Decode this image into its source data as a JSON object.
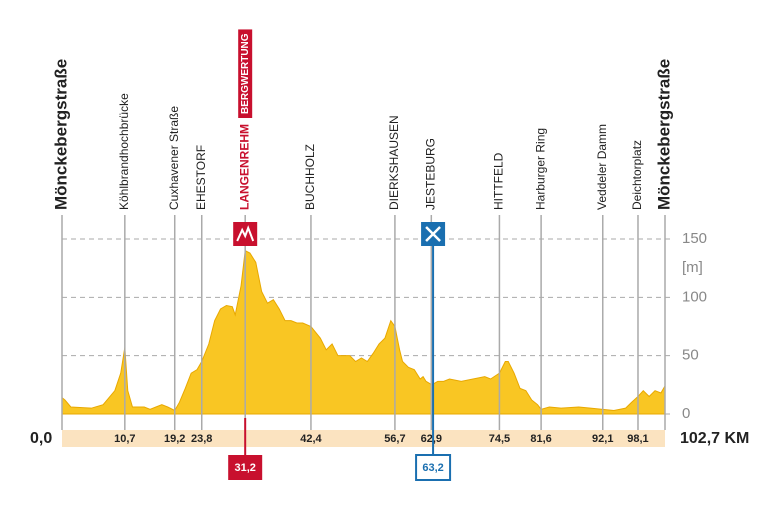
{
  "chart_data": {
    "type": "area",
    "xlim": [
      0,
      102.7
    ],
    "ylim": [
      0,
      150
    ],
    "yticks": [
      0,
      50,
      100,
      150
    ],
    "y_unit": "[m]",
    "grid": true,
    "x": [
      0,
      0.5,
      1.5,
      5,
      7,
      9,
      10,
      10.7,
      11.2,
      12,
      14,
      15,
      16,
      17,
      18,
      19.2,
      20,
      21,
      22,
      23,
      23.8,
      25,
      26,
      27,
      28,
      29,
      29.5,
      30.5,
      31.2,
      32,
      33,
      34,
      35,
      36,
      37,
      38,
      39,
      40,
      41,
      42.4,
      44,
      45,
      46,
      47,
      48,
      49,
      50,
      51,
      52,
      53,
      54,
      55,
      56,
      56.7,
      57.5,
      58,
      59,
      60,
      61,
      61.5,
      62,
      63,
      64,
      65,
      66,
      68,
      70,
      72,
      73,
      74.5,
      75.5,
      76,
      77,
      78,
      79,
      80,
      81,
      81.6,
      83,
      85,
      88,
      90,
      92.1,
      94,
      96,
      97,
      98.1,
      99,
      100,
      101,
      102,
      102.7
    ],
    "series": [
      {
        "color": "#f9c623",
        "values": [
          14,
          12,
          6,
          5,
          8,
          20,
          35,
          57,
          20,
          6,
          6,
          4,
          6,
          8,
          6,
          3,
          10,
          22,
          35,
          38,
          45,
          60,
          80,
          90,
          93,
          92,
          85,
          110,
          140,
          138,
          130,
          105,
          95,
          98,
          90,
          80,
          80,
          78,
          78,
          75,
          65,
          55,
          60,
          50,
          50,
          50,
          45,
          48,
          45,
          52,
          60,
          65,
          80,
          75,
          55,
          45,
          40,
          38,
          30,
          32,
          28,
          25,
          28,
          28,
          30,
          28,
          30,
          32,
          30,
          35,
          45,
          45,
          35,
          22,
          20,
          12,
          8,
          4,
          6,
          5,
          6,
          5,
          4,
          3,
          5,
          10,
          15,
          20,
          15,
          20,
          18,
          24
        ]
      }
    ],
    "waypoints": [
      {
        "name": "Mönckebergstraße",
        "km": {
          "value": 0,
          "label": "0,0"
        },
        "style": "terminal"
      },
      {
        "name": "Köhlbrandhochbrücke",
        "km": {
          "value": 10.7,
          "label": "10,7"
        }
      },
      {
        "name": "Cuxhavener Straße",
        "km": {
          "value": 19.2,
          "label": "19,2"
        }
      },
      {
        "name": "EHESTORF",
        "km": {
          "value": 23.8,
          "label": "23,8"
        }
      },
      {
        "name": "LANGENREHM",
        "km": {
          "value": 31.2,
          "label": "31,2"
        },
        "style": "climb"
      },
      {
        "name": "BUCHHOLZ",
        "km": {
          "value": 42.4,
          "label": "42,4"
        }
      },
      {
        "name": "DIERKSHAUSEN",
        "km": {
          "value": 56.7,
          "label": "56,7"
        }
      },
      {
        "name": "JESTEBURG",
        "km": {
          "value": 62.9,
          "label": "62,9"
        }
      },
      {
        "name": "HITTFELD",
        "km": {
          "value": 74.5,
          "label": "74,5"
        }
      },
      {
        "name": "Harburger Ring",
        "km": {
          "value": 81.6,
          "label": "81,6"
        }
      },
      {
        "name": "Veddeler Damm",
        "km": {
          "value": 92.1,
          "label": "92,1"
        }
      },
      {
        "name": "Deichtorplatz",
        "km": {
          "value": 98.1,
          "label": "98,1"
        }
      },
      {
        "name": "Mönckebergstraße",
        "km": {
          "value": 102.7,
          "label": "102,7 KM"
        },
        "style": "terminal"
      }
    ],
    "climb": {
      "label": "BERGWERTUNG",
      "color": "#c8102e"
    },
    "feed": {
      "km": {
        "value": 63.2,
        "label": "63,2"
      },
      "color": "#1a6fb0"
    }
  }
}
